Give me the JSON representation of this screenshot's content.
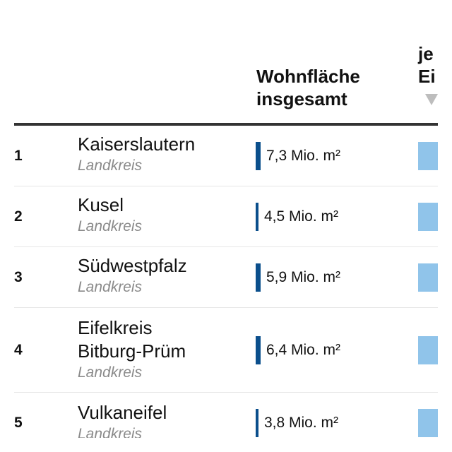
{
  "header": {
    "col_total_line1": "Wohnfläche",
    "col_total_line2": "insgesamt",
    "col_per_line1": "je",
    "col_per_line2": "Ei"
  },
  "colors": {
    "total_bar": "#0b4f8c",
    "per_capita_bar": "#90c4ea",
    "header_rule": "#333333"
  },
  "rows": [
    {
      "rank": "1",
      "name": "Kaiserslautern",
      "type": "Landkreis",
      "value": "7,3 Mio. m²"
    },
    {
      "rank": "2",
      "name": "Kusel",
      "type": "Landkreis",
      "value": "4,5 Mio. m²"
    },
    {
      "rank": "3",
      "name": "Südwestpfalz",
      "type": "Landkreis",
      "value": "5,9 Mio. m²"
    },
    {
      "rank": "4",
      "name_line1": "Eifelkreis",
      "name_line2": "Bitburg-Prüm",
      "type": "Landkreis",
      "value": "6,4 Mio. m²"
    },
    {
      "rank": "5",
      "name": "Vulkaneifel",
      "type": "Landkreis",
      "value": "3,8 Mio. m²"
    }
  ]
}
